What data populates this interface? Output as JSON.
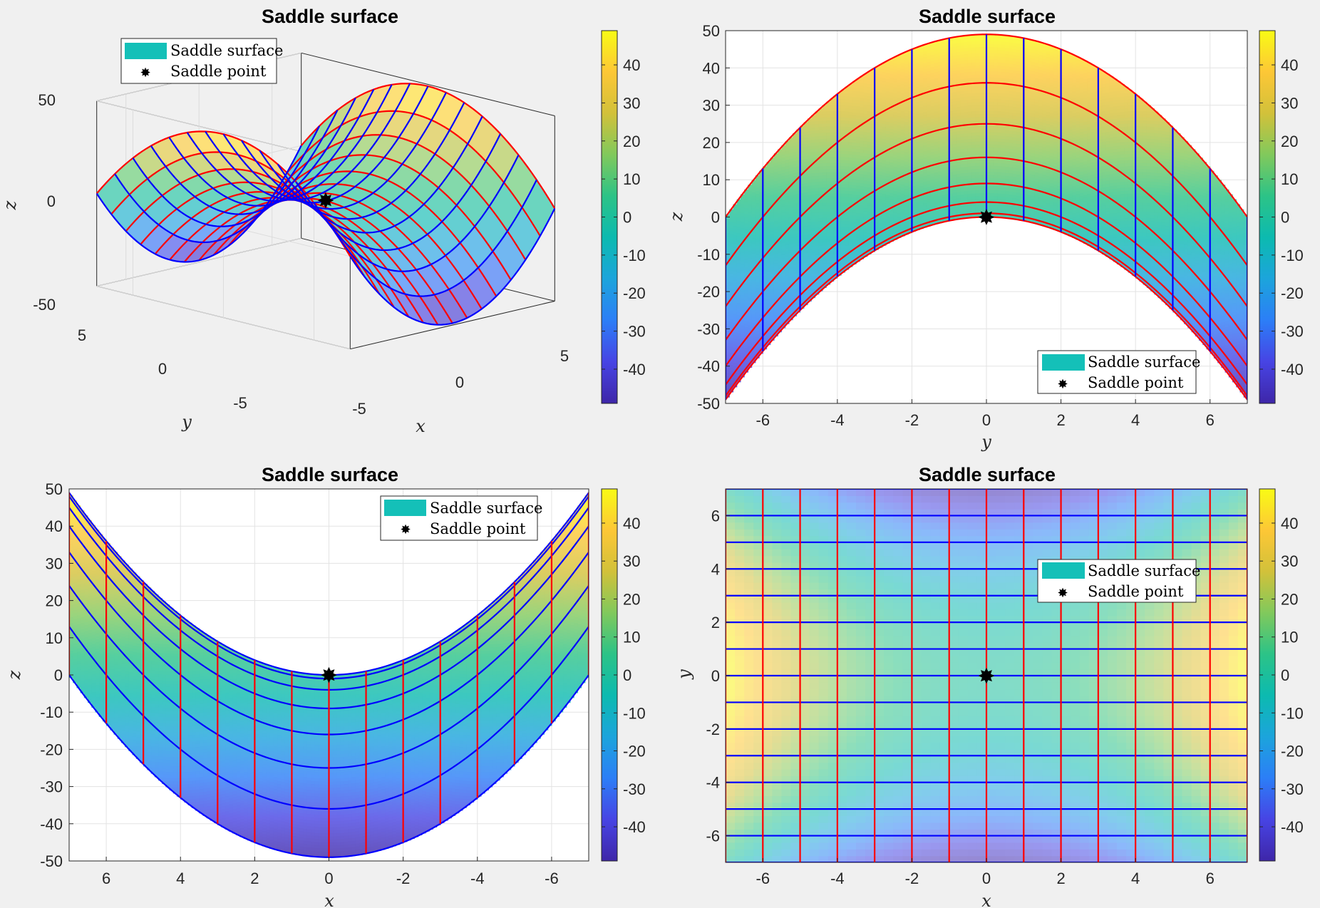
{
  "figure": {
    "colormap": [
      "#3e26a8",
      "#4744e4",
      "#2c7ef7",
      "#1ca4dc",
      "#0cbab0",
      "#2cc387",
      "#81c95c",
      "#d2c13a",
      "#fdc736",
      "#f9fb15"
    ],
    "mesh_color_a": "#ff0000",
    "mesh_color_b": "#0000ff",
    "surface_legend_color": "#14c0b8",
    "point_marker_color": "#000000"
  },
  "colorbar": {
    "ticks": [
      40,
      30,
      20,
      10,
      0,
      -10,
      -20,
      -30,
      -40
    ],
    "tick_labels": [
      "40",
      "30",
      "20",
      "10",
      "0",
      "-10",
      "-20",
      "-30",
      "-40"
    ],
    "range": [
      -49,
      49
    ]
  },
  "chart_data": [
    {
      "type": "surface",
      "view": "3d",
      "title": "Saddle surface",
      "function": "z = x^2 - y^2",
      "x_range": [
        -7,
        7
      ],
      "y_range": [
        -7,
        7
      ],
      "grid_step": 1,
      "saddle_point": {
        "x": 0,
        "y": 0,
        "z": 0
      },
      "xlabel": "x",
      "ylabel": "y",
      "zlabel": "z",
      "x_ticks": [
        "-5",
        "0",
        "5"
      ],
      "y_ticks": [
        "-5",
        "0",
        "5"
      ],
      "z_ticks": [
        "-50",
        "0",
        "50"
      ],
      "legend": [
        "Saddle surface",
        "Saddle point"
      ],
      "legend_position": "top-left"
    },
    {
      "type": "surface",
      "view": "side y-z",
      "title": "Saddle surface",
      "xlabel": "",
      "ylabel": "y",
      "zlabel": "z",
      "xlim": [
        -7,
        7
      ],
      "zlim": [
        -50,
        50
      ],
      "x_ticks": [
        "-6",
        "-4",
        "-2",
        "0",
        "2",
        "4",
        "6"
      ],
      "z_ticks": [
        "50",
        "40",
        "30",
        "20",
        "10",
        "0",
        "-10",
        "-20",
        "-30",
        "-40",
        "-50"
      ],
      "legend": [
        "Saddle surface",
        "Saddle point"
      ],
      "legend_position": "bottom-right",
      "grid": true
    },
    {
      "type": "surface",
      "view": "side x-z",
      "title": "Saddle surface",
      "xlabel": "x",
      "zlabel": "z",
      "xlim": [
        7,
        -7
      ],
      "zlim": [
        -50,
        50
      ],
      "x_ticks": [
        "6",
        "4",
        "2",
        "0",
        "-2",
        "-4",
        "-6"
      ],
      "z_ticks": [
        "50",
        "40",
        "30",
        "20",
        "10",
        "0",
        "-10",
        "-20",
        "-30",
        "-40",
        "-50"
      ],
      "legend": [
        "Saddle surface",
        "Saddle point"
      ],
      "legend_position": "top-right",
      "grid": true
    },
    {
      "type": "surface",
      "view": "top x-y",
      "title": "Saddle surface",
      "xlabel": "x",
      "ylabel": "y",
      "xlim": [
        -7,
        7
      ],
      "ylim": [
        -7,
        7
      ],
      "x_ticks": [
        "-6",
        "-4",
        "-2",
        "0",
        "2",
        "4",
        "6"
      ],
      "y_ticks": [
        "6",
        "4",
        "2",
        "0",
        "-2",
        "-4",
        "-6"
      ],
      "legend": [
        "Saddle surface",
        "Saddle point"
      ],
      "legend_position": "top-right"
    }
  ]
}
